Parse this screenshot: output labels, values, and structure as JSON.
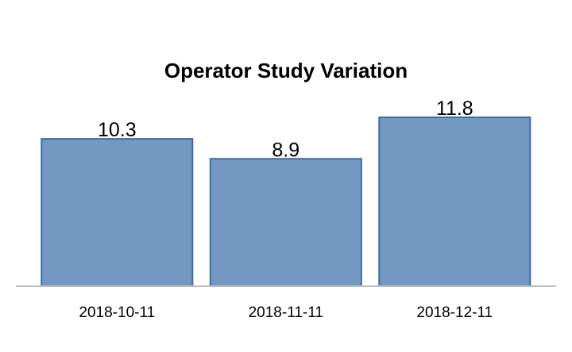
{
  "chart_data": {
    "type": "bar",
    "title": "Operator Study Variation",
    "categories": [
      "2018-10-11",
      "2018-11-11",
      "2018-12-11"
    ],
    "values": [
      10.3,
      8.9,
      11.8
    ],
    "data_labels": [
      "10.3",
      "8.9",
      "11.8"
    ],
    "xlabel": "",
    "ylabel": "",
    "ylim": [
      0,
      11.8
    ],
    "grid": false,
    "legend": "none",
    "colors": {
      "bar_fill": "#7399c2",
      "bar_stroke": "#3a6ba4",
      "axis": "#bfbfbf"
    }
  }
}
